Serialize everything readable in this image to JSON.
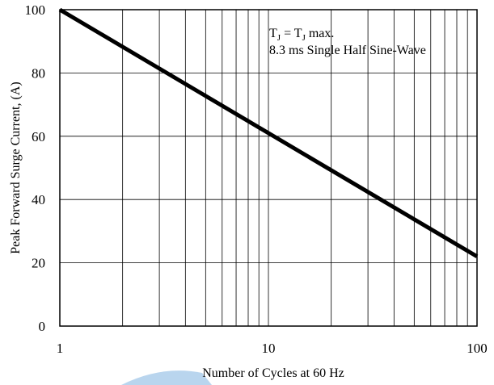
{
  "chart_data": {
    "type": "line",
    "xlabel": "Number of Cycles at 60 Hz",
    "ylabel": "Peak Forward Surge Current, (A)",
    "xscale": "log",
    "xlim": [
      1,
      100
    ],
    "ylim": [
      0,
      100
    ],
    "x_ticks": [
      "1",
      "10",
      "100"
    ],
    "y_ticks": [
      "0",
      "20",
      "40",
      "60",
      "80",
      "100"
    ],
    "grid": true,
    "annotation": {
      "line1_main": "T",
      "line1_sub1": "J",
      "line1_eq": " = T",
      "line1_sub2": "J",
      "line1_tail": " max.",
      "line2": "8.3 ms Single Half Sine-Wave"
    },
    "series": [
      {
        "x": [
          1,
          100
        ],
        "y": [
          100,
          22
        ]
      }
    ],
    "colors": {
      "line": "#000000",
      "grid": "#000000",
      "watermark": "#7fb2e0"
    }
  }
}
